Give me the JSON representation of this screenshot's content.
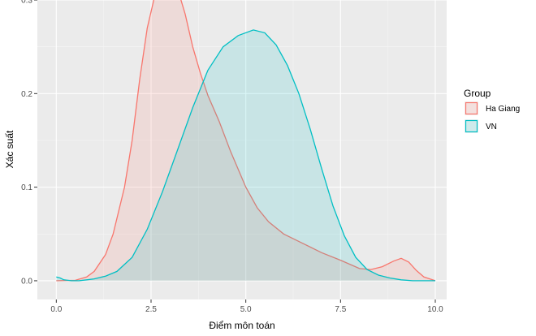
{
  "chart_data": {
    "type": "area",
    "title": "",
    "xlabel": "Điểm môn toán",
    "ylabel": "Xác suất",
    "xlim": [
      -0.5,
      10.3
    ],
    "ylim": [
      -0.02,
      0.3
    ],
    "x_ticks": [
      "0.0",
      "2.5",
      "5.0",
      "7.5",
      "10.0"
    ],
    "x_tick_values": [
      0,
      2.5,
      5,
      7.5,
      10
    ],
    "y_ticks": [
      "0.0",
      "0.1",
      "0.2",
      "0.3"
    ],
    "y_tick_values": [
      0,
      0.1,
      0.2,
      0.3
    ],
    "grid": true,
    "legend": {
      "title": "Group",
      "position": "right"
    },
    "series": [
      {
        "name": "Ha Giang",
        "color": "#f8766d",
        "fill": "#f8766d",
        "x": [
          0.0,
          0.5,
          0.8,
          1.0,
          1.3,
          1.5,
          1.8,
          2.0,
          2.2,
          2.4,
          2.6,
          2.8,
          3.0,
          3.2,
          3.4,
          3.6,
          3.8,
          4.0,
          4.3,
          4.6,
          5.0,
          5.3,
          5.6,
          6.0,
          6.5,
          7.0,
          7.5,
          8.0,
          8.3,
          8.6,
          8.9,
          9.1,
          9.3,
          9.5,
          9.7,
          10.0
        ],
        "y": [
          0.0,
          0.0005,
          0.004,
          0.01,
          0.028,
          0.05,
          0.1,
          0.15,
          0.215,
          0.27,
          0.305,
          0.32,
          0.322,
          0.312,
          0.285,
          0.25,
          0.222,
          0.198,
          0.17,
          0.138,
          0.1,
          0.078,
          0.063,
          0.05,
          0.04,
          0.03,
          0.022,
          0.013,
          0.012,
          0.015,
          0.021,
          0.024,
          0.02,
          0.011,
          0.004,
          0.0
        ]
      },
      {
        "name": "VN",
        "color": "#00bfc4",
        "fill": "#00bfc4",
        "x": [
          0.0,
          0.1,
          0.2,
          0.4,
          0.6,
          0.8,
          1.0,
          1.3,
          1.6,
          2.0,
          2.4,
          2.8,
          3.2,
          3.6,
          4.0,
          4.4,
          4.8,
          5.2,
          5.5,
          5.8,
          6.1,
          6.4,
          6.7,
          7.0,
          7.3,
          7.6,
          7.9,
          8.2,
          8.5,
          8.8,
          9.1,
          9.4,
          9.7,
          10.0
        ],
        "y": [
          0.004,
          0.003,
          0.001,
          0.0,
          0.0,
          0.001,
          0.002,
          0.005,
          0.01,
          0.025,
          0.055,
          0.095,
          0.14,
          0.185,
          0.225,
          0.25,
          0.262,
          0.268,
          0.265,
          0.252,
          0.23,
          0.2,
          0.162,
          0.12,
          0.08,
          0.048,
          0.025,
          0.012,
          0.006,
          0.003,
          0.001,
          0.0,
          0.0,
          0.0
        ]
      }
    ]
  }
}
